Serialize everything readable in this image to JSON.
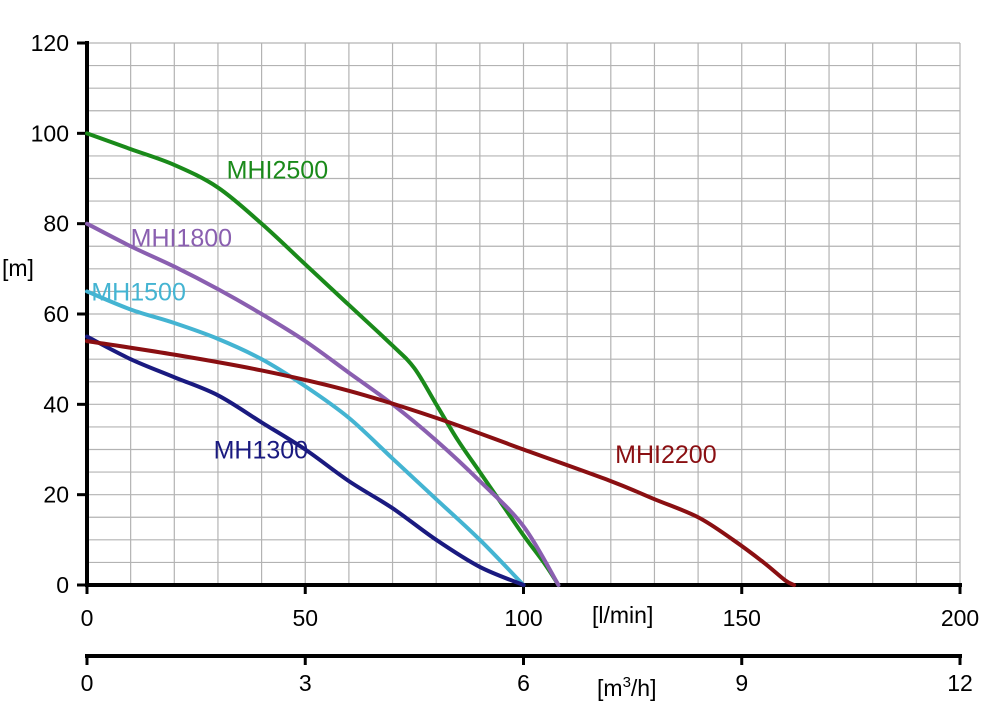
{
  "chart_data": {
    "type": "line",
    "ylabel": "[m]",
    "xlabel": "[l/min]",
    "x2label_prefix": "[m",
    "x2label_sup": "3",
    "x2label_suffix": "/h]",
    "xlim": [
      0,
      200
    ],
    "ylim": [
      0,
      120
    ],
    "x2lim": [
      0,
      12
    ],
    "x_ticks": [
      "0",
      "50",
      "100",
      "150",
      "200"
    ],
    "x2_ticks": [
      "0",
      "3",
      "6",
      "9",
      "12"
    ],
    "y_ticks": [
      "0",
      "20",
      "40",
      "60",
      "80",
      "100",
      "120"
    ],
    "grid": true,
    "series": [
      {
        "name": "MHI2500",
        "color": "#1a8a1a",
        "label_at": [
          32,
          90
        ],
        "points": [
          [
            0,
            100
          ],
          [
            10,
            96.5
          ],
          [
            20,
            93
          ],
          [
            30,
            88
          ],
          [
            40,
            80
          ],
          [
            50,
            71
          ],
          [
            60,
            62
          ],
          [
            70,
            53
          ],
          [
            75,
            48
          ],
          [
            80,
            40
          ],
          [
            85,
            32
          ],
          [
            90,
            25
          ],
          [
            95,
            18
          ],
          [
            100,
            11
          ],
          [
            105,
            4.5
          ],
          [
            108,
            0
          ]
        ]
      },
      {
        "name": "MHI1800",
        "color": "#8a5fb0",
        "label_at": [
          10,
          75
        ],
        "points": [
          [
            0,
            80
          ],
          [
            10,
            75
          ],
          [
            20,
            70.5
          ],
          [
            30,
            65.5
          ],
          [
            40,
            60
          ],
          [
            50,
            54
          ],
          [
            60,
            47
          ],
          [
            70,
            40
          ],
          [
            80,
            32
          ],
          [
            90,
            23
          ],
          [
            100,
            13
          ],
          [
            108,
            0
          ]
        ]
      },
      {
        "name": "MH1500",
        "color": "#44b4d2",
        "label_at": [
          1,
          63
        ],
        "points": [
          [
            0,
            65
          ],
          [
            10,
            61
          ],
          [
            20,
            58
          ],
          [
            30,
            54.5
          ],
          [
            40,
            50
          ],
          [
            50,
            44
          ],
          [
            60,
            37
          ],
          [
            70,
            28
          ],
          [
            80,
            19
          ],
          [
            90,
            10
          ],
          [
            100,
            0
          ]
        ]
      },
      {
        "name": "MH1300",
        "color": "#1a1a80",
        "label_at": [
          29,
          28
        ],
        "points": [
          [
            0,
            55
          ],
          [
            10,
            50
          ],
          [
            20,
            46
          ],
          [
            30,
            42
          ],
          [
            40,
            36
          ],
          [
            50,
            30
          ],
          [
            60,
            23
          ],
          [
            70,
            17
          ],
          [
            80,
            10
          ],
          [
            90,
            4
          ],
          [
            100,
            0
          ]
        ]
      },
      {
        "name": "MHI2200",
        "color": "#8a0f12",
        "label_at": [
          121,
          27
        ],
        "points": [
          [
            0,
            54
          ],
          [
            20,
            51
          ],
          [
            40,
            47.5
          ],
          [
            60,
            43
          ],
          [
            80,
            37
          ],
          [
            100,
            30
          ],
          [
            120,
            23
          ],
          [
            130,
            19
          ],
          [
            140,
            15
          ],
          [
            148,
            10
          ],
          [
            155,
            5
          ],
          [
            160,
            1
          ],
          [
            162,
            0
          ]
        ]
      }
    ]
  }
}
